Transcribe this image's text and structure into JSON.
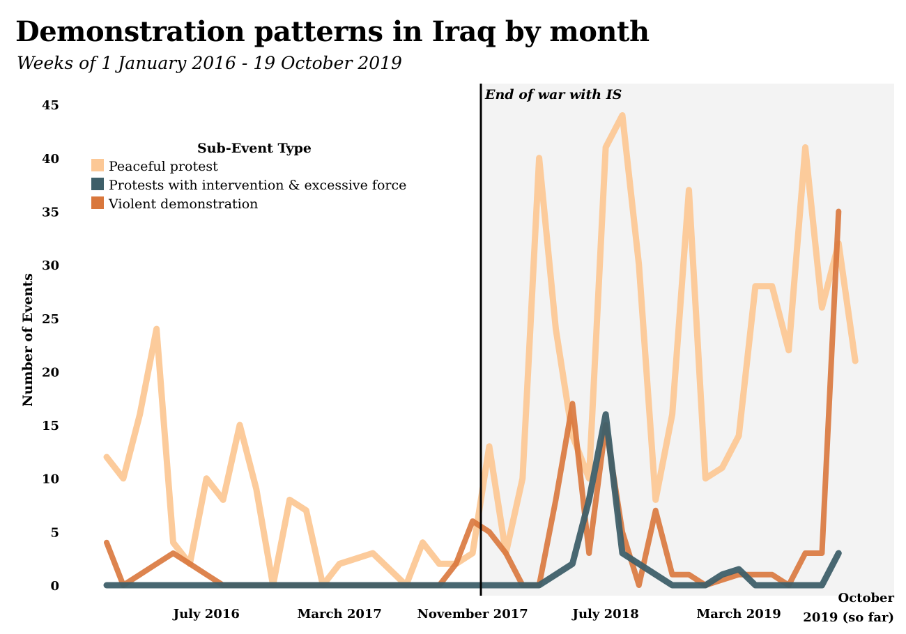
{
  "title": "Demonstration patterns in Iraq by month",
  "subtitle": "Weeks of 1 January 2016 - 19 October 2019",
  "chart_data": {
    "type": "line",
    "title": "Demonstration patterns in Iraq by month",
    "subtitle": "Weeks of 1 January 2016 - 19 October 2019",
    "ylabel": "Number of Events",
    "xlabel": "",
    "ylim": [
      0,
      45
    ],
    "yticks": [
      0,
      5,
      10,
      15,
      20,
      25,
      30,
      35,
      40,
      45
    ],
    "x_start": "January 2016",
    "x_end": "October 2019",
    "xtick_labels": [
      {
        "month": "July 2016",
        "lines": [
          "July 2016"
        ]
      },
      {
        "month": "March 2017",
        "lines": [
          "March 2017"
        ]
      },
      {
        "month": "November 2017",
        "lines": [
          "November 2017"
        ]
      },
      {
        "month": "July 2018",
        "lines": [
          "July 2018"
        ]
      },
      {
        "month": "March 2019",
        "lines": [
          "March 2019"
        ]
      },
      {
        "month": "October 2019",
        "lines": [
          "October",
          "2019 (so far)"
        ]
      }
    ],
    "x": [
      "January 2016",
      "February 2016",
      "March 2016",
      "April 2016",
      "May 2016",
      "June 2016",
      "July 2016",
      "August 2016",
      "September 2016",
      "October 2016",
      "November 2016",
      "December 2016",
      "January 2017",
      "February 2017",
      "March 2017",
      "April 2017",
      "May 2017",
      "June 2017",
      "July 2017",
      "August 2017",
      "September 2017",
      "October 2017",
      "November 2017",
      "December 2017",
      "January 2018",
      "February 2018",
      "March 2018",
      "April 2018",
      "May 2018",
      "June 2018",
      "July 2018",
      "August 2018",
      "September 2018",
      "October 2018",
      "November 2018",
      "December 2018",
      "January 2019",
      "February 2019",
      "March 2019",
      "April 2019",
      "May 2019",
      "June 2019",
      "July 2019",
      "August 2019",
      "September 2019",
      "October 2019"
    ],
    "shaded_region": {
      "from": "December 2017",
      "to": "October 2019",
      "color": "#f3f3f3"
    },
    "annotation": {
      "text": "End of war with IS",
      "at": "December 2017"
    },
    "legend": {
      "title": "Sub-Event Type",
      "position": "top-left"
    },
    "series": [
      {
        "name": "Peaceful protest",
        "color": "#fcc896",
        "values": [
          12,
          10,
          16,
          24,
          4,
          2,
          10,
          8,
          15,
          9,
          0,
          8,
          7,
          0,
          2,
          2.5,
          3,
          1.5,
          0,
          4,
          2,
          2,
          3,
          13,
          3,
          10,
          40,
          24,
          14,
          10,
          41,
          44,
          30,
          8,
          16,
          37,
          10,
          11,
          14,
          28,
          28,
          22,
          41,
          26,
          32,
          21
        ]
      },
      {
        "name": "Protests with intervention & excessive force",
        "color": "#3e5f69",
        "values": [
          0,
          0,
          0,
          0,
          0,
          0,
          0,
          0,
          0,
          0,
          0,
          0,
          0,
          0,
          0,
          0,
          0,
          0,
          0,
          0,
          0,
          0,
          0,
          0,
          0,
          0,
          0,
          1,
          2,
          8,
          16,
          3,
          2,
          1,
          0,
          0,
          0,
          1,
          1.5,
          0,
          0,
          0,
          0,
          0,
          3,
          null
        ]
      },
      {
        "name": "Violent demonstration",
        "color": "#d9773c",
        "values": [
          4,
          0,
          1,
          2,
          3,
          2,
          1,
          0,
          0,
          0,
          0,
          0,
          0,
          0,
          0,
          0,
          0,
          0,
          0,
          0,
          0,
          2,
          6,
          5,
          3,
          0,
          0,
          8,
          17,
          3,
          15,
          5,
          0,
          7,
          1,
          1,
          0,
          0.5,
          1,
          1,
          1,
          0,
          3,
          3,
          35,
          null
        ]
      }
    ]
  }
}
